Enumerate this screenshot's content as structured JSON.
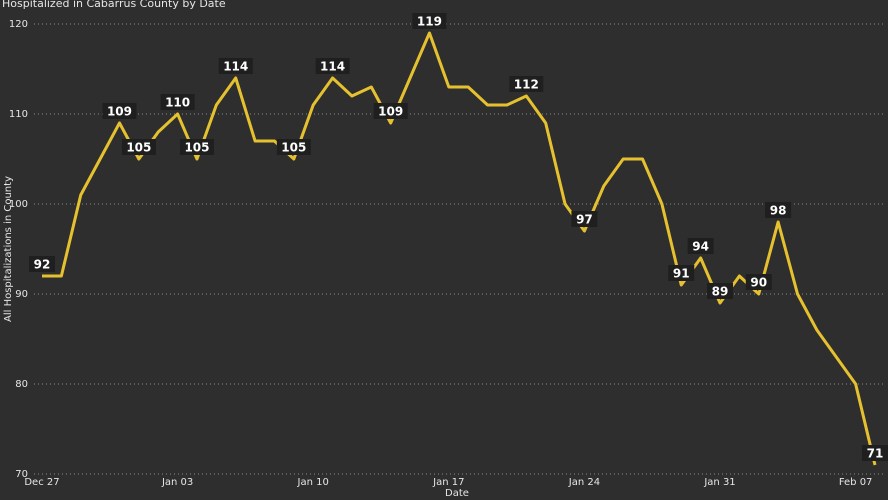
{
  "chart_data": {
    "type": "line",
    "title": "Hospitalized in Cabarrus County by Date",
    "x_label": "Date",
    "y_label": "All Hospitalizations in County",
    "categories": [
      "Dec 27",
      null,
      null,
      null,
      null,
      null,
      null,
      "Jan 03",
      null,
      null,
      null,
      null,
      null,
      null,
      "Jan 10",
      null,
      null,
      null,
      null,
      null,
      null,
      "Jan 17",
      null,
      null,
      null,
      null,
      null,
      null,
      "Jan 24",
      null,
      null,
      null,
      null,
      null,
      null,
      "Jan 31",
      null,
      null,
      null,
      null,
      null,
      null,
      "Feb 07",
      null
    ],
    "series": [
      {
        "name": "All Hospitalizations in County",
        "color": "#e6c12f",
        "values": [
          92,
          92,
          101,
          105,
          109,
          105,
          108,
          110,
          105,
          111,
          114,
          107,
          107,
          105,
          111,
          114,
          112,
          113,
          109,
          114,
          119,
          113,
          113,
          111,
          111,
          112,
          109,
          100,
          97,
          102,
          105,
          105,
          100,
          91,
          94,
          89,
          92,
          90,
          98,
          90,
          86,
          83,
          80,
          71
        ],
        "value_labels": [
          "92",
          null,
          null,
          null,
          "109",
          "105",
          null,
          "110",
          "105",
          null,
          "114",
          null,
          null,
          "105",
          null,
          "114",
          null,
          null,
          "109",
          null,
          "119",
          null,
          null,
          null,
          null,
          "112",
          null,
          null,
          "97",
          null,
          null,
          null,
          null,
          "91",
          "94",
          "89",
          null,
          "90",
          "98",
          null,
          null,
          null,
          null,
          "71"
        ]
      }
    ],
    "ylim": [
      70,
      120
    ],
    "yticks": [
      70,
      80,
      90,
      100,
      110,
      120
    ],
    "grid": true
  }
}
